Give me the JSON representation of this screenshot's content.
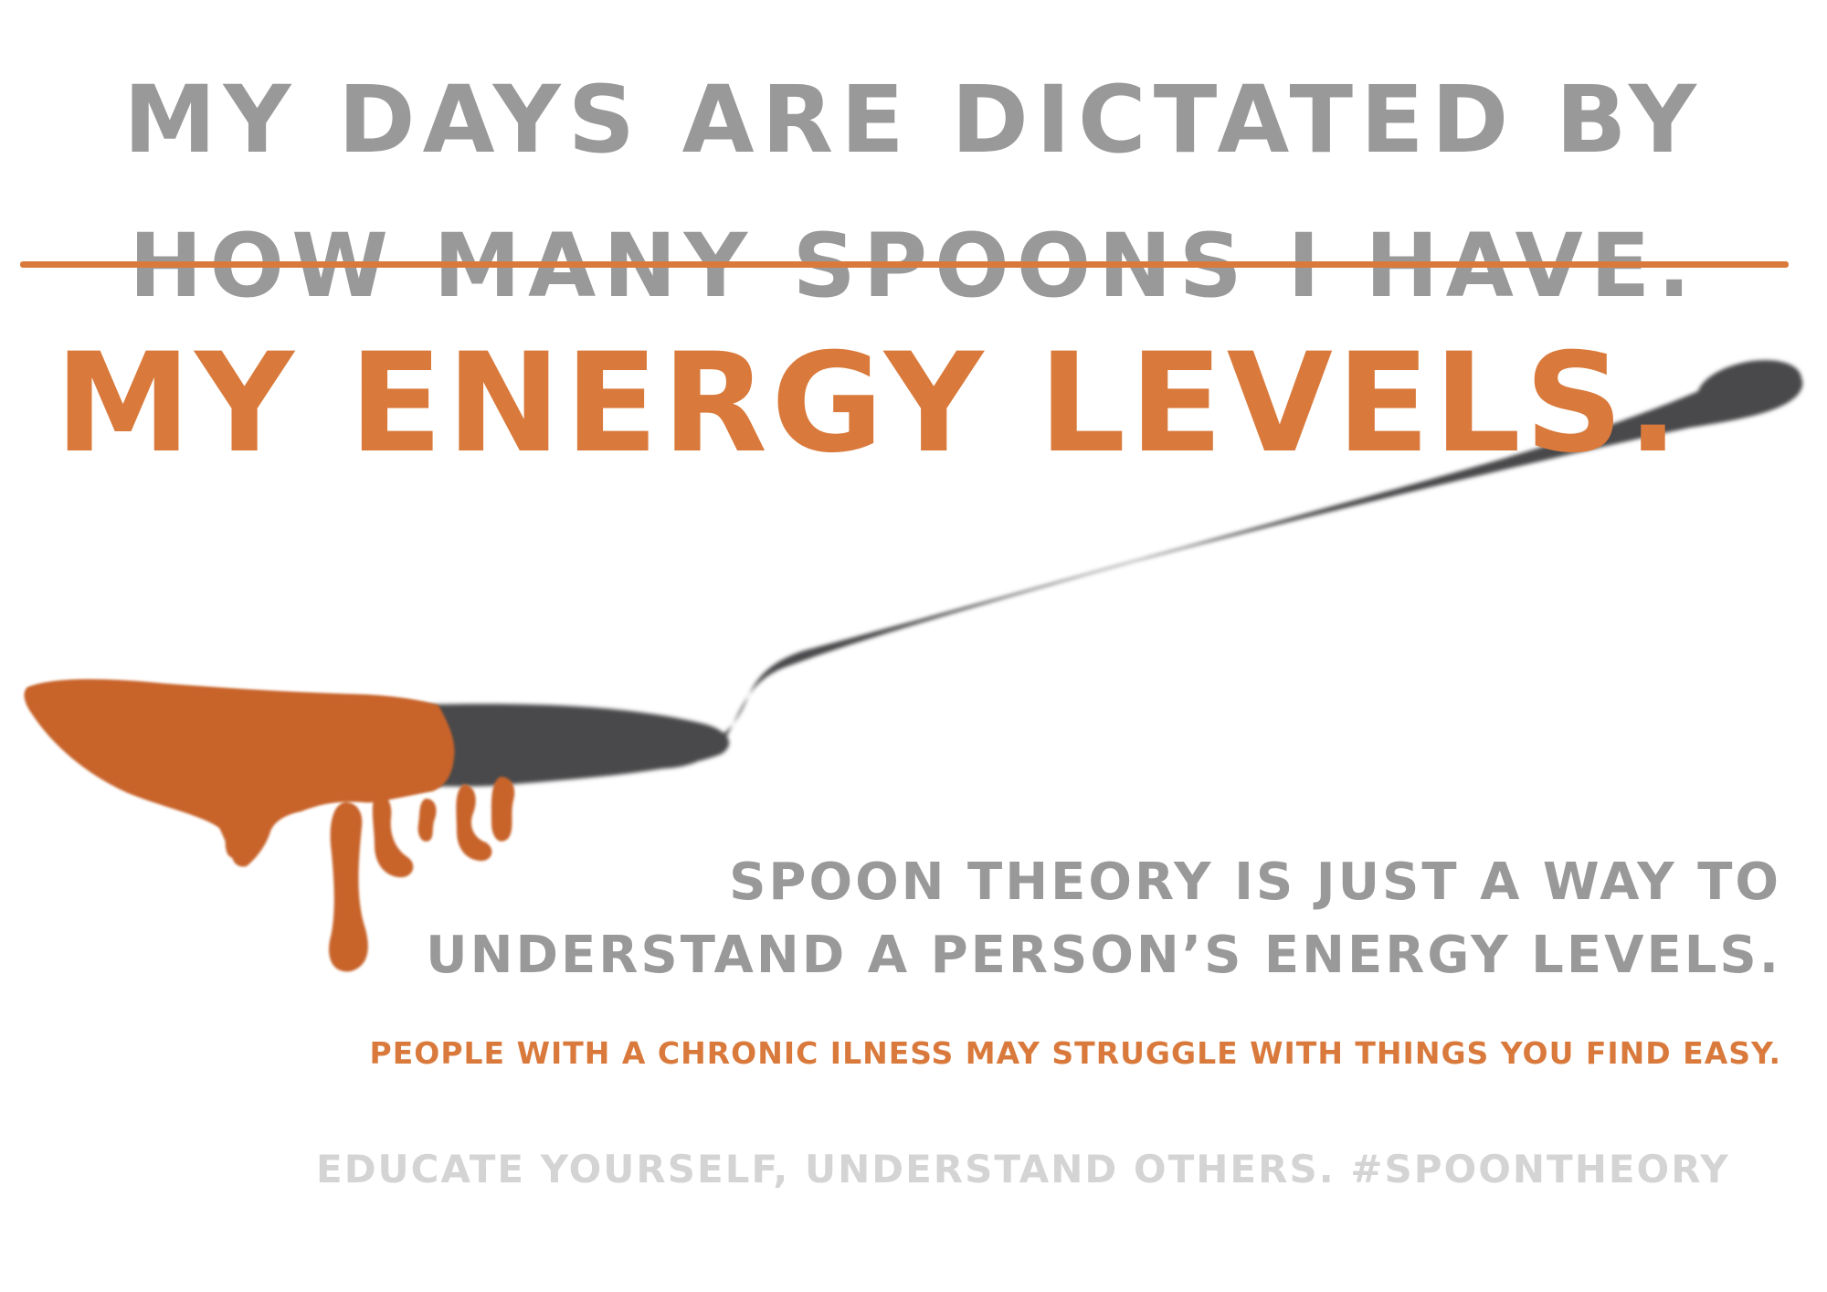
{
  "colors": {
    "accent_orange": "#d97a3c",
    "heading_gray": "#999999",
    "footer_gray": "#d4d4d4",
    "spoon_gray": "#4a4a4c",
    "honey_orange": "#c8642a"
  },
  "headline": {
    "line1": "MY DAYS ARE DICTATED BY",
    "line2_struck": "HOW MANY SPOONS I HAVE.",
    "line3": "MY ENERGY LEVELS."
  },
  "body": {
    "line1": "SPOON THEORY IS JUST A WAY TO",
    "line2": "UNDERSTAND A PERSON’S ENERGY LEVELS.",
    "line3": "PEOPLE WITH A CHRONIC ILNESS MAY STRUGGLE WITH THINGS YOU FIND EASY."
  },
  "footer": {
    "text": "EDUCATE YOURSELF, UNDERSTAND OTHERS. #SPOONTHEORY"
  },
  "illustration": {
    "icon": "dripping-spoon-icon"
  }
}
